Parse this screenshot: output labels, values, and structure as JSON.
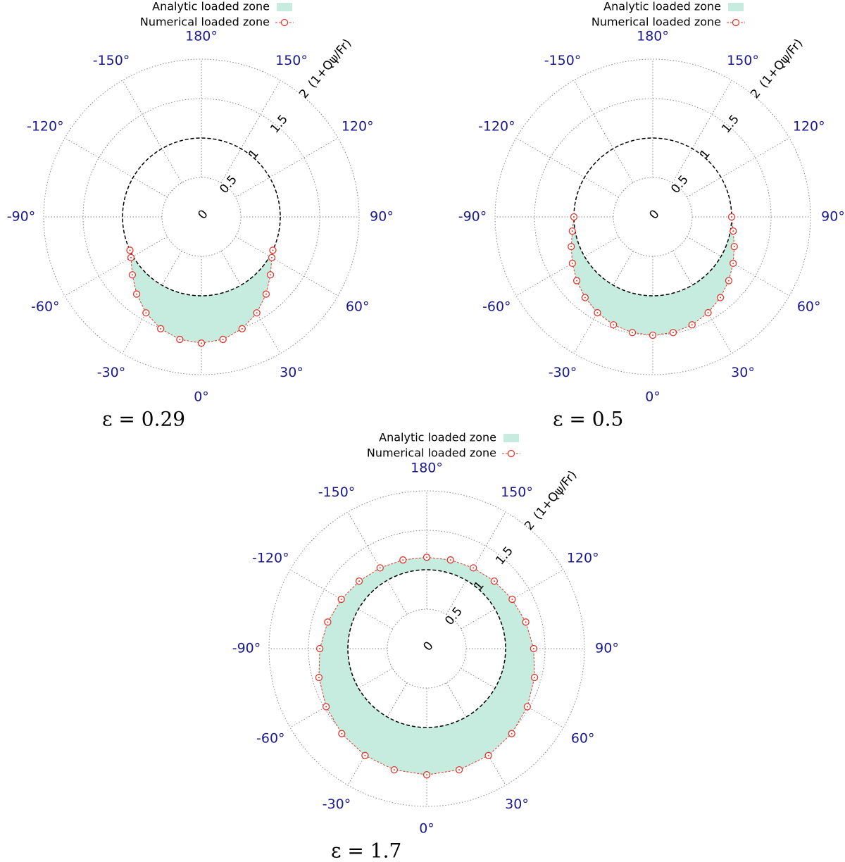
{
  "chart_data": [
    {
      "type": "polar",
      "caption": "ε = 0.29",
      "radial_label": "(1+Qψ/Fr)",
      "rlim": [
        0,
        2
      ],
      "rticks": [
        0,
        0.5,
        1,
        1.5,
        2
      ],
      "reference_circle": 1,
      "angle_ticks": [
        {
          "value": 180,
          "label": "180°"
        },
        {
          "value": 150,
          "label": "150°"
        },
        {
          "value": 120,
          "label": "120°"
        },
        {
          "value": 90,
          "label": "90°"
        },
        {
          "value": 60,
          "label": "60°"
        },
        {
          "value": 30,
          "label": "30°"
        },
        {
          "value": 0,
          "label": "0°"
        },
        {
          "value": -30,
          "label": "-30°"
        },
        {
          "value": -60,
          "label": "-60°"
        },
        {
          "value": -90,
          "label": "-90°"
        },
        {
          "value": -120,
          "label": "-120°"
        },
        {
          "value": -150,
          "label": "-150°"
        }
      ],
      "series": [
        {
          "name": "Analytic loaded zone",
          "color": "#c6ebdf",
          "theta": [
            -65,
            -60,
            -50,
            -40,
            -30,
            -20,
            -10,
            0,
            10,
            20,
            30,
            40,
            50,
            60,
            65
          ],
          "values": [
            1.0,
            1.031,
            1.143,
            1.277,
            1.405,
            1.509,
            1.577,
            1.6,
            1.577,
            1.509,
            1.405,
            1.277,
            1.143,
            1.031,
            1.0
          ]
        },
        {
          "name": "Numerical loaded zone",
          "color": "#e0382c",
          "theta": [
            -65,
            -60,
            -50,
            -40,
            -30,
            -20,
            -10,
            0,
            10,
            20,
            30,
            40,
            50,
            60,
            65
          ],
          "values": [
            1.0,
            1.031,
            1.143,
            1.277,
            1.405,
            1.509,
            1.577,
            1.6,
            1.577,
            1.509,
            1.405,
            1.277,
            1.143,
            1.031,
            1.0
          ]
        }
      ]
    },
    {
      "type": "polar",
      "caption": "ε = 0.5",
      "radial_label": "(1+Qψ/Fr)",
      "rlim": [
        0,
        2
      ],
      "rticks": [
        0,
        0.5,
        1,
        1.5,
        2
      ],
      "reference_circle": 1,
      "angle_ticks": [
        {
          "value": 180,
          "label": "180°"
        },
        {
          "value": 150,
          "label": "150°"
        },
        {
          "value": 120,
          "label": "120°"
        },
        {
          "value": 90,
          "label": "90°"
        },
        {
          "value": 60,
          "label": "60°"
        },
        {
          "value": 30,
          "label": "30°"
        },
        {
          "value": 0,
          "label": "0°"
        },
        {
          "value": -30,
          "label": "-30°"
        },
        {
          "value": -60,
          "label": "-60°"
        },
        {
          "value": -90,
          "label": "-90°"
        },
        {
          "value": -120,
          "label": "-120°"
        },
        {
          "value": -150,
          "label": "-150°"
        }
      ],
      "series": [
        {
          "name": "Analytic loaded zone",
          "color": "#c6ebdf",
          "theta": [
            -90,
            -80,
            -70,
            -60,
            -50,
            -40,
            -30,
            -20,
            -10,
            0,
            10,
            20,
            30,
            40,
            50,
            60,
            70,
            80,
            90
          ],
          "values": [
            1.0,
            1.036,
            1.1,
            1.177,
            1.258,
            1.335,
            1.403,
            1.456,
            1.489,
            1.5,
            1.489,
            1.456,
            1.403,
            1.335,
            1.258,
            1.177,
            1.1,
            1.036,
            1.0
          ]
        },
        {
          "name": "Numerical loaded zone",
          "color": "#e0382c",
          "theta": [
            -90,
            -80,
            -70,
            -60,
            -50,
            -40,
            -30,
            -20,
            -10,
            0,
            10,
            20,
            30,
            40,
            50,
            60,
            70,
            80,
            90
          ],
          "values": [
            1.0,
            1.036,
            1.1,
            1.177,
            1.258,
            1.335,
            1.403,
            1.456,
            1.489,
            1.5,
            1.489,
            1.456,
            1.403,
            1.335,
            1.258,
            1.177,
            1.1,
            1.036,
            1.0
          ]
        }
      ]
    },
    {
      "type": "polar",
      "caption": "ε = 1.7",
      "radial_label": "(1+Qψ/Fr)",
      "rlim": [
        0,
        2
      ],
      "rticks": [
        0,
        0.5,
        1,
        1.5,
        2
      ],
      "reference_circle": 1,
      "angle_ticks": [
        {
          "value": 180,
          "label": "180°"
        },
        {
          "value": 150,
          "label": "150°"
        },
        {
          "value": 120,
          "label": "120°"
        },
        {
          "value": 90,
          "label": "90°"
        },
        {
          "value": 60,
          "label": "60°"
        },
        {
          "value": 30,
          "label": "30°"
        },
        {
          "value": 0,
          "label": "0°"
        },
        {
          "value": -30,
          "label": "-30°"
        },
        {
          "value": -60,
          "label": "-60°"
        },
        {
          "value": -90,
          "label": "-90°"
        },
        {
          "value": -120,
          "label": "-120°"
        },
        {
          "value": -150,
          "label": "-150°"
        }
      ],
      "series": [
        {
          "name": "Analytic loaded zone",
          "color": "#c6ebdf",
          "theta": [
            -165,
            -150,
            -135,
            -120,
            -105,
            -90,
            -75,
            -60,
            -45,
            -30,
            -15,
            0,
            15,
            30,
            45,
            60,
            75,
            90,
            105,
            120,
            135,
            150,
            165,
            180
          ],
          "values": [
            1.164,
            1.182,
            1.211,
            1.251,
            1.3,
            1.356,
            1.415,
            1.473,
            1.524,
            1.565,
            1.591,
            1.6,
            1.591,
            1.565,
            1.524,
            1.473,
            1.415,
            1.356,
            1.3,
            1.251,
            1.211,
            1.182,
            1.164,
            1.158
          ]
        },
        {
          "name": "Numerical loaded zone",
          "color": "#e0382c",
          "theta": [
            -165,
            -150,
            -135,
            -120,
            -105,
            -90,
            -75,
            -60,
            -45,
            -30,
            -15,
            0,
            15,
            30,
            45,
            60,
            75,
            90,
            105,
            120,
            135,
            150,
            165,
            180
          ],
          "values": [
            1.164,
            1.182,
            1.211,
            1.251,
            1.3,
            1.356,
            1.415,
            1.473,
            1.524,
            1.565,
            1.591,
            1.6,
            1.591,
            1.565,
            1.524,
            1.473,
            1.415,
            1.356,
            1.3,
            1.251,
            1.211,
            1.182,
            1.164,
            1.158
          ]
        }
      ]
    }
  ]
}
